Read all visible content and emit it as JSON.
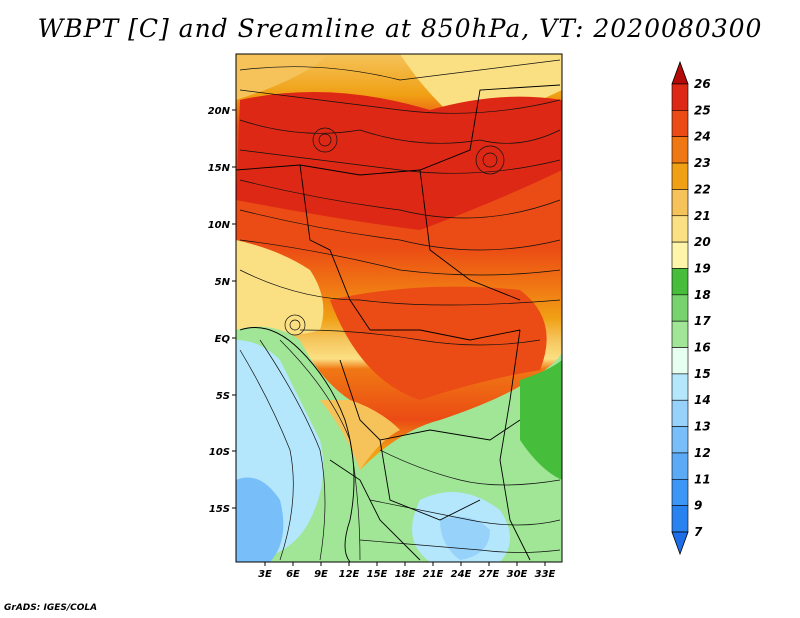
{
  "title": "WBPT [C] and Sreamline at 850hPa, VT: 2020080300",
  "credit": "GrADS: IGES/COLA",
  "axes": {
    "lat_ticks": [
      "20N",
      "15N",
      "10N",
      "5N",
      "EQ",
      "5S",
      "10S",
      "15S"
    ],
    "lon_ticks": [
      "3E",
      "6E",
      "9E",
      "12E",
      "15E",
      "18E",
      "21E",
      "24E",
      "27E",
      "30E",
      "33E"
    ]
  },
  "colorbar": {
    "levels": [
      "7",
      "9",
      "11",
      "12",
      "13",
      "14",
      "15",
      "16",
      "17",
      "18",
      "19",
      "20",
      "21",
      "22",
      "23",
      "24",
      "25",
      "26"
    ],
    "colors": [
      "#1e6ee8",
      "#2882f0",
      "#3c96f5",
      "#5aaaf5",
      "#78bef8",
      "#96d2fa",
      "#b4e6fc",
      "#e6fff0",
      "#a0e696",
      "#78d26e",
      "#46be3c",
      "#fff5aa",
      "#fbe083",
      "#f5c35a",
      "#f0a014",
      "#f07814",
      "#eb4b14",
      "#dc2814",
      "#b40a0a"
    ]
  },
  "fields": [
    {
      "name": "field-cool-southwest",
      "color": "#78bef8"
    },
    {
      "name": "field-mild-south",
      "color": "#a0e696"
    },
    {
      "name": "field-warm-north",
      "color": "#f07814"
    },
    {
      "name": "field-hot-core",
      "color": "#eb4b14"
    }
  ]
}
